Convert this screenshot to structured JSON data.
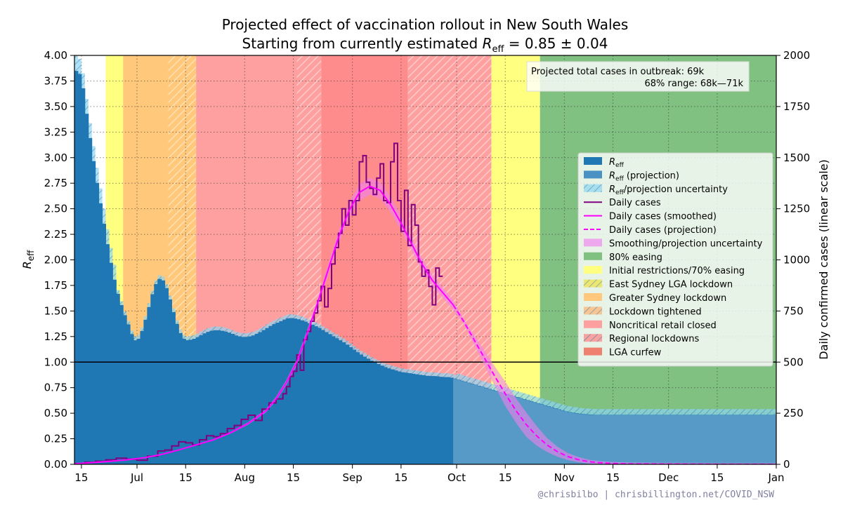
{
  "chart_data": {
    "type": "step-line with shaded regions",
    "title": "Projected effect of vaccination rollout in New South Wales",
    "subtitle_prefix": "Starting from currently estimated ",
    "subtitle_symbol": "R",
    "subtitle_subscript": "eff",
    "subtitle_value": " = 0.85 ± 0.04",
    "ylabel_left_symbol": "R",
    "ylabel_left_subscript": "eff",
    "ylabel_right": "Daily confirmed cases (linear scale)",
    "ylim_left": [
      0,
      4
    ],
    "ylim_right": [
      0,
      2000
    ],
    "xlim_days": [
      0,
      202
    ],
    "left_ticks": [
      {
        "v": 0,
        "label": "0.00"
      },
      {
        "v": 0.25,
        "label": "0.25"
      },
      {
        "v": 0.5,
        "label": "0.50"
      },
      {
        "v": 0.75,
        "label": "0.75"
      },
      {
        "v": 1.0,
        "label": "1.00"
      },
      {
        "v": 1.25,
        "label": "1.25"
      },
      {
        "v": 1.5,
        "label": "1.50"
      },
      {
        "v": 1.75,
        "label": "1.75"
      },
      {
        "v": 2.0,
        "label": "2.00"
      },
      {
        "v": 2.25,
        "label": "2.25"
      },
      {
        "v": 2.5,
        "label": "2.50"
      },
      {
        "v": 2.75,
        "label": "2.75"
      },
      {
        "v": 3.0,
        "label": "3.00"
      },
      {
        "v": 3.25,
        "label": "3.25"
      },
      {
        "v": 3.5,
        "label": "3.50"
      },
      {
        "v": 3.75,
        "label": "3.75"
      },
      {
        "v": 4.0,
        "label": "4.00"
      }
    ],
    "right_ticks": [
      {
        "v": 0,
        "label": "0"
      },
      {
        "v": 250,
        "label": "250"
      },
      {
        "v": 500,
        "label": "500"
      },
      {
        "v": 750,
        "label": "750"
      },
      {
        "v": 1000,
        "label": "1000"
      },
      {
        "v": 1250,
        "label": "1250"
      },
      {
        "v": 1500,
        "label": "1500"
      },
      {
        "v": 1750,
        "label": "1750"
      },
      {
        "v": 2000,
        "label": "2000"
      }
    ],
    "x_ticks": [
      {
        "d": 2,
        "label": "15"
      },
      {
        "d": 18,
        "label": "Jul"
      },
      {
        "d": 32,
        "label": "15"
      },
      {
        "d": 49,
        "label": "Aug"
      },
      {
        "d": 63,
        "label": "15"
      },
      {
        "d": 80,
        "label": "Sep"
      },
      {
        "d": 94,
        "label": "15"
      },
      {
        "d": 110,
        "label": "Oct"
      },
      {
        "d": 124,
        "label": "15"
      },
      {
        "d": 141,
        "label": "Nov"
      },
      {
        "d": 155,
        "label": "15"
      },
      {
        "d": 171,
        "label": "Dec"
      },
      {
        "d": 185,
        "label": "15"
      },
      {
        "d": 202,
        "label": "Jan"
      }
    ],
    "restriction_periods": [
      {
        "name": "Initial restrictions",
        "start": 9,
        "end": 14,
        "color": "#ffff80"
      },
      {
        "name": "Greater Sydney lockdown",
        "start": 14,
        "end": 35,
        "color": "#ffc87a"
      },
      {
        "name": "Noncritical retail closed",
        "start": 35,
        "end": 71,
        "color": "#ffa0a0"
      },
      {
        "name": "LGA curfew",
        "start": 71,
        "end": 96,
        "color": "#ff8c8c"
      },
      {
        "name": "Noncritical retail closed",
        "start": 96,
        "end": 120,
        "color": "#ffa0a0"
      },
      {
        "name": "70% easing",
        "start": 120,
        "end": 134,
        "color": "#ffff80"
      },
      {
        "name": "80% easing",
        "start": 134,
        "end": 202,
        "color": "#80c080"
      }
    ],
    "hatch_periods": [
      {
        "name": "East Sydney LGA lockdown",
        "start": 6,
        "end": 9
      },
      {
        "name": "Lockdown tightened",
        "start": 27,
        "end": 35
      },
      {
        "name": "Regional lockdowns",
        "start": 64,
        "end": 71
      },
      {
        "name": "Regional lockdowns",
        "start": 96,
        "end": 120
      }
    ],
    "projection_start_day": 109,
    "reff_series": [
      [
        0,
        3.86
      ],
      [
        2,
        3.8
      ],
      [
        4,
        3.3
      ],
      [
        6,
        2.85
      ],
      [
        8,
        2.45
      ],
      [
        10,
        2.05
      ],
      [
        12,
        1.72
      ],
      [
        14,
        1.5
      ],
      [
        16,
        1.32
      ],
      [
        17,
        1.22
      ],
      [
        18,
        1.2
      ],
      [
        19,
        1.25
      ],
      [
        20,
        1.35
      ],
      [
        21,
        1.47
      ],
      [
        22,
        1.6
      ],
      [
        23,
        1.72
      ],
      [
        24,
        1.8
      ],
      [
        25,
        1.82
      ],
      [
        26,
        1.77
      ],
      [
        27,
        1.67
      ],
      [
        28,
        1.55
      ],
      [
        29,
        1.42
      ],
      [
        30,
        1.32
      ],
      [
        31,
        1.24
      ],
      [
        32,
        1.21
      ],
      [
        33,
        1.21
      ],
      [
        35,
        1.23
      ],
      [
        37,
        1.27
      ],
      [
        39,
        1.3
      ],
      [
        41,
        1.31
      ],
      [
        43,
        1.3
      ],
      [
        45,
        1.28
      ],
      [
        47,
        1.25
      ],
      [
        49,
        1.24
      ],
      [
        51,
        1.25
      ],
      [
        53,
        1.28
      ],
      [
        55,
        1.32
      ],
      [
        57,
        1.36
      ],
      [
        59,
        1.39
      ],
      [
        61,
        1.42
      ],
      [
        62,
        1.43
      ],
      [
        64,
        1.42
      ],
      [
        66,
        1.4
      ],
      [
        68,
        1.37
      ],
      [
        70,
        1.34
      ],
      [
        72,
        1.3
      ],
      [
        74,
        1.26
      ],
      [
        76,
        1.22
      ],
      [
        78,
        1.18
      ],
      [
        80,
        1.13
      ],
      [
        82,
        1.08
      ],
      [
        84,
        1.04
      ],
      [
        86,
        1.0
      ],
      [
        88,
        0.97
      ],
      [
        90,
        0.94
      ],
      [
        92,
        0.92
      ],
      [
        94,
        0.9
      ],
      [
        96,
        0.89
      ],
      [
        98,
        0.88
      ],
      [
        100,
        0.87
      ],
      [
        102,
        0.86
      ],
      [
        104,
        0.86
      ],
      [
        106,
        0.85
      ],
      [
        108,
        0.85
      ],
      [
        110,
        0.83
      ],
      [
        112,
        0.81
      ],
      [
        114,
        0.79
      ],
      [
        116,
        0.77
      ],
      [
        118,
        0.75
      ],
      [
        120,
        0.73
      ],
      [
        122,
        0.71
      ],
      [
        124,
        0.69
      ],
      [
        126,
        0.67
      ],
      [
        128,
        0.65
      ],
      [
        130,
        0.63
      ],
      [
        132,
        0.61
      ],
      [
        134,
        0.59
      ],
      [
        136,
        0.57
      ],
      [
        138,
        0.55
      ],
      [
        140,
        0.53
      ],
      [
        142,
        0.51
      ],
      [
        144,
        0.5
      ],
      [
        146,
        0.49
      ],
      [
        150,
        0.48
      ],
      [
        160,
        0.48
      ],
      [
        170,
        0.48
      ],
      [
        180,
        0.48
      ],
      [
        190,
        0.48
      ],
      [
        202,
        0.48
      ]
    ],
    "daily_cases": [
      [
        0,
        4
      ],
      [
        3,
        10
      ],
      [
        6,
        15
      ],
      [
        9,
        22
      ],
      [
        12,
        30
      ],
      [
        15,
        25
      ],
      [
        18,
        20
      ],
      [
        21,
        40
      ],
      [
        24,
        65
      ],
      [
        26,
        70
      ],
      [
        28,
        90
      ],
      [
        30,
        110
      ],
      [
        32,
        105
      ],
      [
        34,
        95
      ],
      [
        36,
        120
      ],
      [
        38,
        140
      ],
      [
        40,
        135
      ],
      [
        42,
        150
      ],
      [
        44,
        175
      ],
      [
        46,
        190
      ],
      [
        48,
        220
      ],
      [
        50,
        240
      ],
      [
        52,
        215
      ],
      [
        54,
        270
      ],
      [
        56,
        300
      ],
      [
        58,
        320
      ],
      [
        60,
        345
      ],
      [
        61,
        380
      ],
      [
        62,
        430
      ],
      [
        63,
        455
      ],
      [
        64,
        535
      ],
      [
        65,
        460
      ],
      [
        66,
        610
      ],
      [
        67,
        650
      ],
      [
        68,
        700
      ],
      [
        69,
        740
      ],
      [
        70,
        800
      ],
      [
        71,
        870
      ],
      [
        72,
        770
      ],
      [
        73,
        860
      ],
      [
        74,
        980
      ],
      [
        75,
        1060
      ],
      [
        76,
        1130
      ],
      [
        77,
        1250
      ],
      [
        78,
        1170
      ],
      [
        79,
        1290
      ],
      [
        80,
        1220
      ],
      [
        81,
        1290
      ],
      [
        82,
        1480
      ],
      [
        83,
        1510
      ],
      [
        84,
        1380
      ],
      [
        85,
        1350
      ],
      [
        86,
        1320
      ],
      [
        87,
        1400
      ],
      [
        88,
        1470
      ],
      [
        89,
        1290
      ],
      [
        90,
        1280
      ],
      [
        91,
        1480
      ],
      [
        92,
        1570
      ],
      [
        93,
        1290
      ],
      [
        94,
        1140
      ],
      [
        95,
        1340
      ],
      [
        96,
        1070
      ],
      [
        97,
        1270
      ],
      [
        98,
        1170
      ],
      [
        99,
        990
      ],
      [
        100,
        920
      ],
      [
        101,
        950
      ],
      [
        102,
        870
      ],
      [
        103,
        780
      ],
      [
        104,
        960
      ],
      [
        105,
        920
      ]
    ],
    "smoothed_cases": [
      [
        0,
        3
      ],
      [
        5,
        8
      ],
      [
        10,
        14
      ],
      [
        15,
        22
      ],
      [
        20,
        32
      ],
      [
        25,
        48
      ],
      [
        30,
        70
      ],
      [
        35,
        95
      ],
      [
        40,
        120
      ],
      [
        45,
        155
      ],
      [
        50,
        200
      ],
      [
        55,
        260
      ],
      [
        58,
        320
      ],
      [
        61,
        400
      ],
      [
        64,
        500
      ],
      [
        67,
        640
      ],
      [
        70,
        790
      ],
      [
        73,
        950
      ],
      [
        76,
        1110
      ],
      [
        79,
        1240
      ],
      [
        82,
        1330
      ],
      [
        85,
        1360
      ],
      [
        88,
        1340
      ],
      [
        91,
        1270
      ],
      [
        94,
        1180
      ],
      [
        97,
        1080
      ],
      [
        100,
        980
      ],
      [
        103,
        900
      ],
      [
        106,
        840
      ],
      [
        109,
        780
      ]
    ],
    "projected_cases": [
      [
        109,
        780
      ],
      [
        112,
        700
      ],
      [
        115,
        610
      ],
      [
        118,
        520
      ],
      [
        121,
        430
      ],
      [
        124,
        345
      ],
      [
        127,
        265
      ],
      [
        130,
        195
      ],
      [
        133,
        140
      ],
      [
        136,
        95
      ],
      [
        139,
        62
      ],
      [
        142,
        38
      ],
      [
        145,
        23
      ],
      [
        148,
        13
      ],
      [
        151,
        8
      ],
      [
        155,
        4
      ],
      [
        160,
        2
      ],
      [
        170,
        1
      ],
      [
        185,
        0
      ],
      [
        202,
        0
      ]
    ],
    "annotation_line1": "Projected total cases in outbreak:  69k",
    "annotation_line2": "68% range:  68k—71k",
    "legend": [
      {
        "kind": "bar",
        "sym": "R",
        "sub": "eff",
        "rest": "",
        "color": "#1f77b4"
      },
      {
        "kind": "bar",
        "sym": "R",
        "sub": "eff",
        "rest": " (projection)",
        "color": "#4a92c4"
      },
      {
        "kind": "hatch",
        "sym": "R",
        "sub": "eff",
        "rest": "/projection uncertainty",
        "color": "#8fd4f0"
      },
      {
        "kind": "line",
        "text": "Daily cases",
        "color": "#800080"
      },
      {
        "kind": "line",
        "text": "Daily cases (smoothed)",
        "color": "#ff00ff"
      },
      {
        "kind": "dash",
        "text": "Daily cases (projection)",
        "color": "#ff00ff"
      },
      {
        "kind": "patch",
        "text": "Smoothing/projection uncertainty",
        "color": "#eea8ee"
      },
      {
        "kind": "patch",
        "text": "80% easing",
        "color": "#80c080"
      },
      {
        "kind": "patch",
        "text": "Initial restrictions/70% easing",
        "color": "#ffff80"
      },
      {
        "kind": "hatch",
        "text": "East Sydney LGA lockdown",
        "color": "#f0e040"
      },
      {
        "kind": "patch",
        "text": "Greater Sydney lockdown",
        "color": "#ffc87a"
      },
      {
        "kind": "hatch",
        "text": "Lockdown tightened",
        "color": "#ffb070"
      },
      {
        "kind": "patch",
        "text": "Noncritical retail closed",
        "color": "#ffa0a0"
      },
      {
        "kind": "hatch",
        "text": "Regional lockdowns",
        "color": "#ff8080"
      },
      {
        "kind": "patch",
        "text": "LGA curfew",
        "color": "#ef8070"
      }
    ],
    "credit": "@chrisbilbo | chrisbillington.net/COVID_NSW",
    "colors": {
      "reff": "#1f77b4",
      "reff_band": "#8fd4f0",
      "cases": "#800080",
      "smoothed": "#ff00ff",
      "band": "#ee82ee"
    }
  }
}
